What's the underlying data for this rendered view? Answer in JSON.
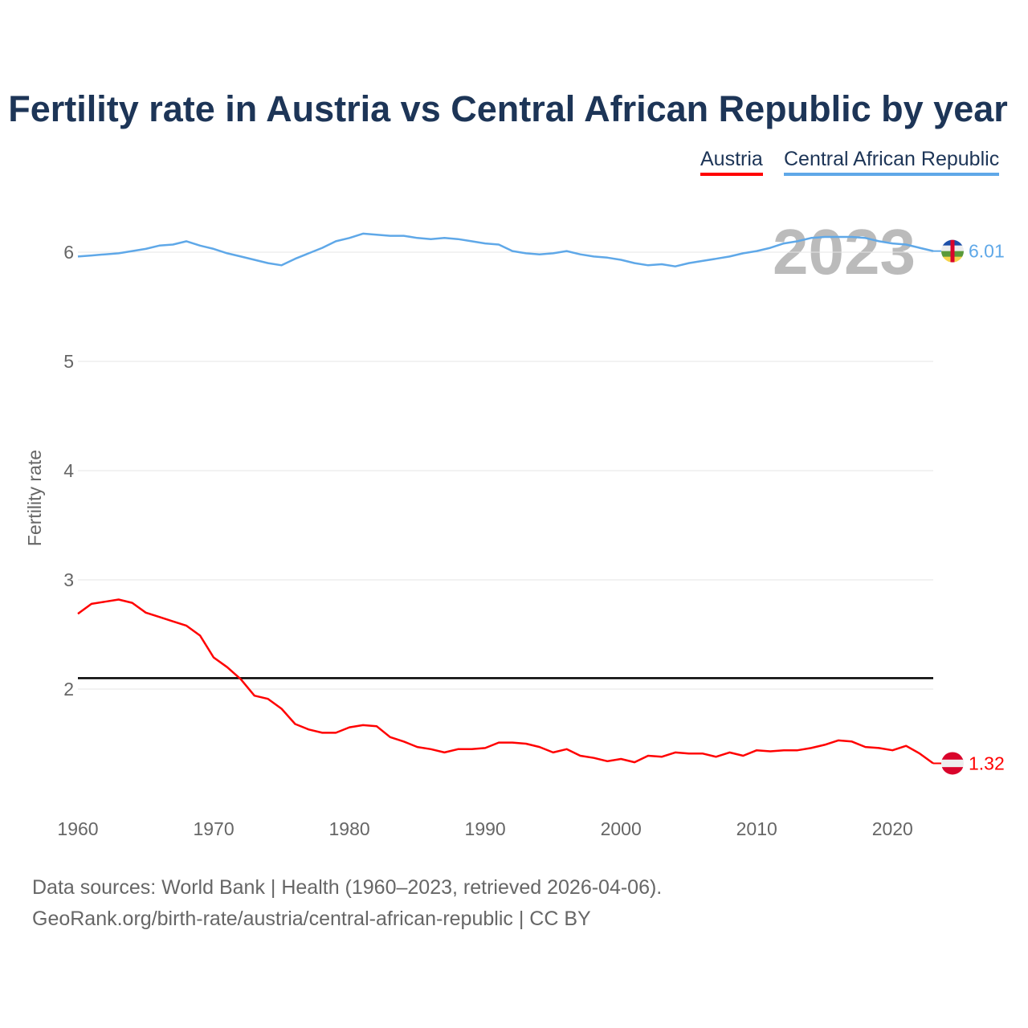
{
  "chart_data": {
    "type": "line",
    "title": "Fertility rate in Austria vs Central African Republic by year",
    "xlabel": "",
    "ylabel": "Fertility rate",
    "xlim": [
      1960,
      2023
    ],
    "ylim": [
      1.0,
      6.5
    ],
    "x_ticks": [
      "1960",
      "1970",
      "1980",
      "1990",
      "2000",
      "2010",
      "2020"
    ],
    "y_ticks": [
      "2",
      "3",
      "4",
      "5",
      "6"
    ],
    "grid": true,
    "legend_placement": "top-right",
    "year_label": "2023",
    "reference_line": 2.1,
    "x": [
      1960,
      1961,
      1962,
      1963,
      1964,
      1965,
      1966,
      1967,
      1968,
      1969,
      1970,
      1971,
      1972,
      1973,
      1974,
      1975,
      1976,
      1977,
      1978,
      1979,
      1980,
      1981,
      1982,
      1983,
      1984,
      1985,
      1986,
      1987,
      1988,
      1989,
      1990,
      1991,
      1992,
      1993,
      1994,
      1995,
      1996,
      1997,
      1998,
      1999,
      2000,
      2001,
      2002,
      2003,
      2004,
      2005,
      2006,
      2007,
      2008,
      2009,
      2010,
      2011,
      2012,
      2013,
      2014,
      2015,
      2016,
      2017,
      2018,
      2019,
      2020,
      2021,
      2022,
      2023
    ],
    "series": [
      {
        "name": "Austria",
        "color": "#ff0000",
        "end_label": "1.32",
        "values": [
          2.69,
          2.78,
          2.8,
          2.82,
          2.79,
          2.7,
          2.66,
          2.62,
          2.58,
          2.49,
          2.29,
          2.2,
          2.09,
          1.94,
          1.91,
          1.82,
          1.68,
          1.63,
          1.6,
          1.6,
          1.65,
          1.67,
          1.66,
          1.56,
          1.52,
          1.47,
          1.45,
          1.42,
          1.45,
          1.45,
          1.46,
          1.51,
          1.51,
          1.5,
          1.47,
          1.42,
          1.45,
          1.39,
          1.37,
          1.34,
          1.36,
          1.33,
          1.39,
          1.38,
          1.42,
          1.41,
          1.41,
          1.38,
          1.42,
          1.39,
          1.44,
          1.43,
          1.44,
          1.44,
          1.46,
          1.49,
          1.53,
          1.52,
          1.47,
          1.46,
          1.44,
          1.48,
          1.41,
          1.32
        ]
      },
      {
        "name": "Central African Republic",
        "color": "#5fa8e8",
        "end_label": "6.01",
        "values": [
          5.96,
          5.97,
          5.98,
          5.99,
          6.01,
          6.03,
          6.06,
          6.07,
          6.1,
          6.06,
          6.03,
          5.99,
          5.96,
          5.93,
          5.9,
          5.88,
          5.94,
          5.99,
          6.04,
          6.1,
          6.13,
          6.17,
          6.16,
          6.15,
          6.15,
          6.13,
          6.12,
          6.13,
          6.12,
          6.1,
          6.08,
          6.07,
          6.01,
          5.99,
          5.98,
          5.99,
          6.01,
          5.98,
          5.96,
          5.95,
          5.93,
          5.9,
          5.88,
          5.89,
          5.87,
          5.9,
          5.92,
          5.94,
          5.96,
          5.99,
          6.01,
          6.04,
          6.08,
          6.1,
          6.13,
          6.14,
          6.14,
          6.14,
          6.13,
          6.1,
          6.08,
          6.07,
          6.04,
          6.01
        ]
      }
    ]
  },
  "footer": {
    "line1": "Data sources: World Bank | Health (1960–2023, retrieved 2026-04-06).",
    "line2": "GeoRank.org/birth-rate/austria/central-african-republic | CC BY"
  }
}
